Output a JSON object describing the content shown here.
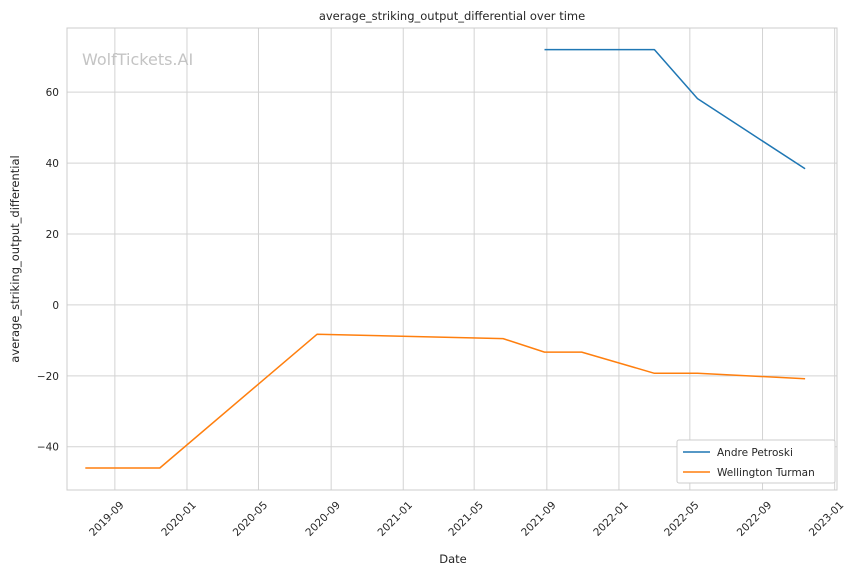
{
  "watermark": "WolfTickets.AI",
  "chart_data": {
    "type": "line",
    "title": "average_striking_output_differential over time",
    "xlabel": "Date",
    "ylabel": "average_striking_output_differential",
    "x_ticks": [
      "2019-09",
      "2020-01",
      "2020-05",
      "2020-09",
      "2021-01",
      "2021-05",
      "2021-09",
      "2022-01",
      "2022-05",
      "2022-09",
      "2023-01"
    ],
    "y_ticks": [
      -40,
      -20,
      0,
      20,
      40,
      60
    ],
    "y_tick_labels": [
      "−40",
      "−20",
      "0",
      "20",
      "40",
      "60"
    ],
    "xlim": [
      "2019-06-12",
      "2023-01-05"
    ],
    "ylim": [
      -52.2,
      78.1
    ],
    "grid": true,
    "legend_position": "lower-right",
    "series": [
      {
        "name": "Andre Petroski",
        "color": "#1f77b4",
        "points": [
          [
            "2021-08-28",
            72.0
          ],
          [
            "2022-03-02",
            72.0
          ],
          [
            "2022-05-14",
            58.2
          ],
          [
            "2022-11-12",
            38.4
          ]
        ]
      },
      {
        "name": "Wellington Turman",
        "color": "#ff7f0e",
        "points": [
          [
            "2019-07-13",
            -46.0
          ],
          [
            "2019-11-16",
            -46.0
          ],
          [
            "2020-08-08",
            -8.3
          ],
          [
            "2021-06-19",
            -9.5
          ],
          [
            "2021-08-28",
            -13.3
          ],
          [
            "2021-10-30",
            -13.3
          ],
          [
            "2022-03-02",
            -19.3
          ],
          [
            "2022-05-14",
            -19.3
          ],
          [
            "2022-11-12",
            -20.8
          ]
        ]
      }
    ]
  }
}
